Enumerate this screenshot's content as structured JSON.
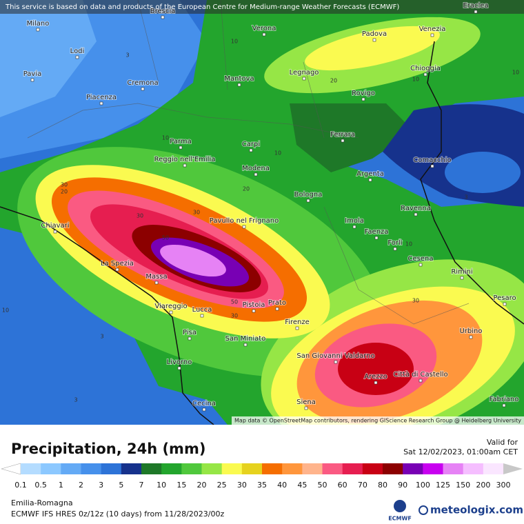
{
  "header": {
    "attribution": "This service is based on data and products of the European Centre for Medium-range Weather Forecasts (ECMWF)"
  },
  "map": {
    "credit": "Map data © OpenStreetMap contributors, rendering GIScience Research Group @ Heidelberg University",
    "cities": [
      "Brescia",
      "Eraclea",
      "Milano",
      "Lodi",
      "Pavia",
      "Cremona",
      "Piacenza",
      "Verona",
      "Mantova",
      "Legnago",
      "Padova",
      "Venezia",
      "Chioggia",
      "Rovigo",
      "Parma",
      "Carpi",
      "Reggio nell'Emilia",
      "Modena",
      "Ferrara",
      "Argenta",
      "Comacchio",
      "Bologna",
      "Ravenna",
      "Imola",
      "Faenza",
      "Forlì",
      "Cesena",
      "Rimini",
      "Pesaro",
      "Pavullo nel Frignano",
      "Chiavari",
      "La Spezia",
      "Massa",
      "Viareggio",
      "Lucca",
      "Pistoia",
      "Prato",
      "Firenze",
      "Pisa",
      "San Miniato",
      "Livorno",
      "San Giovanni Valdarno",
      "Arezzo",
      "Città di Castello",
      "Urbino",
      "Cecina",
      "Siena",
      "Fabriano"
    ],
    "contour_labels": [
      10,
      3,
      20,
      10,
      10,
      10,
      10,
      20,
      30,
      20,
      30,
      30,
      50,
      50,
      30,
      10,
      30,
      3,
      3,
      3,
      10
    ]
  },
  "legend": {
    "title": "Precipitation, 24h (mm)",
    "valid_label": "Valid for",
    "valid_time": "Sat 12/02/2023, 01:00am CET",
    "labels": [
      0.1,
      0.5,
      1,
      2,
      3,
      5,
      7,
      10,
      15,
      20,
      25,
      30,
      35,
      40,
      45,
      50,
      60,
      70,
      80,
      90,
      100,
      125,
      150,
      200,
      300
    ],
    "colors": [
      "#b4dcff",
      "#8cc8ff",
      "#64aaf5",
      "#4690eb",
      "#2d73d7",
      "#16328c",
      "#1e7828",
      "#23a52d",
      "#50c83c",
      "#96e646",
      "#fafa50",
      "#e6d21e",
      "#f56e00",
      "#ff963c",
      "#ffb48c",
      "#fa5a82",
      "#e61e50",
      "#c80014",
      "#8c0000",
      "#7800b4",
      "#c800f0",
      "#e682f5",
      "#f5beff",
      "#fae6ff",
      "#c8c8c8"
    ]
  },
  "footer": {
    "region": "Emilia-Romagna",
    "model": "ECMWF IFS HRES 0z/12z (10 days) from  11/28/2023/00z",
    "logo_left": "ECMWF",
    "logo_right": "meteologix.com"
  }
}
